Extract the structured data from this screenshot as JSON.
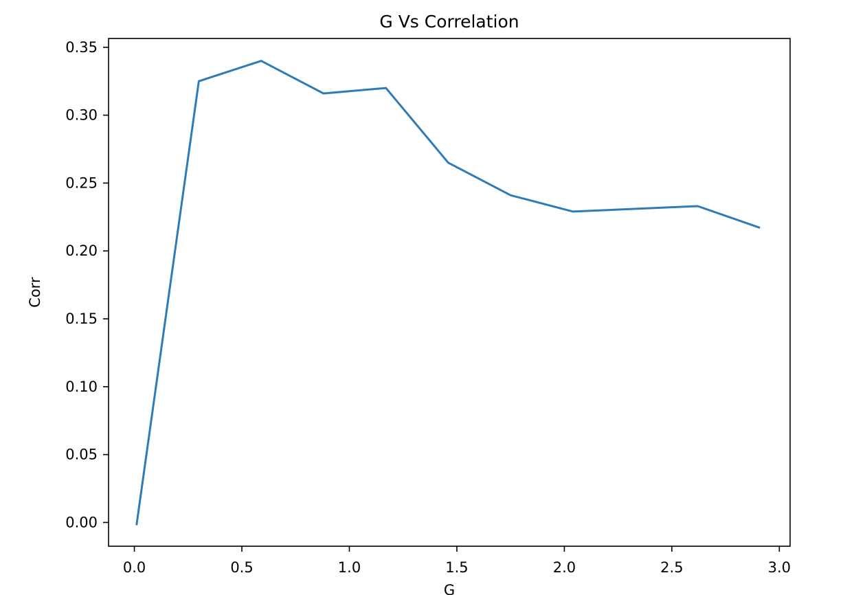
{
  "chart_data": {
    "type": "line",
    "title": "G Vs Correlation",
    "xlabel": "G",
    "ylabel": "Corr",
    "xlim": [
      -0.12,
      3.05
    ],
    "ylim": [
      -0.0175,
      0.3565
    ],
    "xticks": [
      0.0,
      0.5,
      1.0,
      1.5,
      2.0,
      2.5,
      3.0
    ],
    "xtick_labels": [
      "0.0",
      "0.5",
      "1.0",
      "1.5",
      "2.0",
      "2.5",
      "3.0"
    ],
    "yticks": [
      0.0,
      0.05,
      0.1,
      0.15,
      0.2,
      0.25,
      0.3,
      0.35
    ],
    "ytick_labels": [
      "0.00",
      "0.05",
      "0.10",
      "0.15",
      "0.20",
      "0.25",
      "0.30",
      "0.35"
    ],
    "grid": false,
    "series": [
      {
        "color": "#2f7bb6",
        "x": [
          0.01,
          0.3,
          0.59,
          0.88,
          1.17,
          1.46,
          1.75,
          2.04,
          2.62,
          2.91
        ],
        "y": [
          -0.002,
          0.325,
          0.34,
          0.316,
          0.32,
          0.265,
          0.241,
          0.229,
          0.233,
          0.217
        ]
      }
    ]
  }
}
